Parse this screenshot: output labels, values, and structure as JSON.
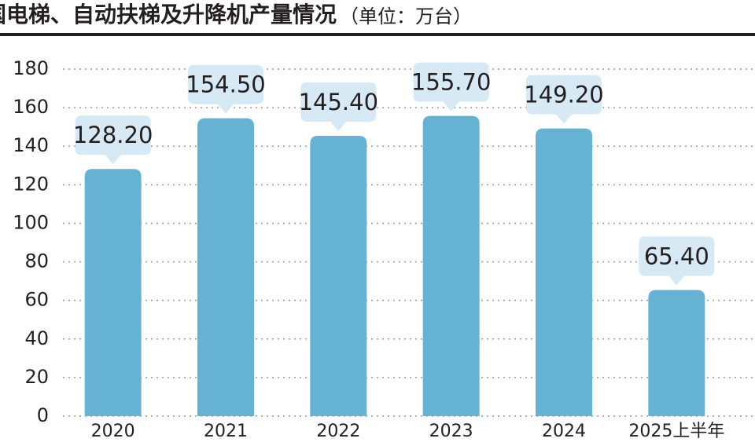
{
  "chart_data": {
    "type": "bar",
    "title": "中国电梯、自动扶梯及升降机产量情况",
    "subtitle": "（单位：万台）",
    "categories": [
      "2020",
      "2021",
      "2022",
      "2023",
      "2024",
      "2025上半年"
    ],
    "values": [
      128.2,
      154.5,
      145.4,
      155.7,
      149.2,
      65.4
    ],
    "value_labels": [
      "128.20",
      "154.50",
      "145.40",
      "155.70",
      "149.20",
      "65.40"
    ],
    "color": "#66b2d3",
    "ylim": [
      0,
      180
    ],
    "yticks": [
      0,
      20,
      40,
      60,
      80,
      100,
      120,
      140,
      160,
      180
    ],
    "grid": true
  }
}
